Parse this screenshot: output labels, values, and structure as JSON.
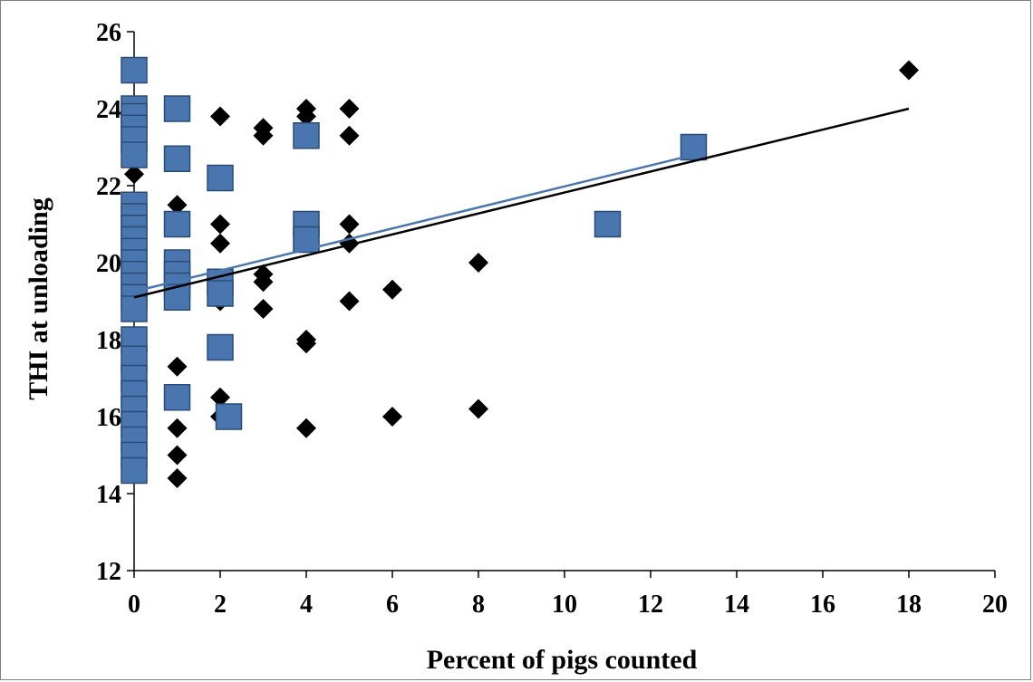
{
  "chart_data": {
    "type": "scatter",
    "title": "",
    "xlabel": "Percent of pigs counted",
    "ylabel": "THI at unloading",
    "xlim": [
      0,
      20
    ],
    "ylim": [
      12,
      26
    ],
    "x_ticks": [
      0,
      2,
      4,
      6,
      8,
      10,
      12,
      14,
      16,
      18,
      20
    ],
    "y_ticks": [
      12,
      14,
      16,
      18,
      20,
      22,
      24,
      26
    ],
    "grid": false,
    "legend": "none",
    "series": [
      {
        "marker": "diamond",
        "color": "#000000",
        "points": [
          [
            0,
            22.3
          ],
          [
            0,
            23.8
          ],
          [
            0,
            20.5
          ],
          [
            0,
            19.0
          ],
          [
            1,
            24.0
          ],
          [
            1,
            21.5
          ],
          [
            1,
            17.3
          ],
          [
            1,
            15.7
          ],
          [
            1,
            15.0
          ],
          [
            1,
            14.4
          ],
          [
            2,
            23.8
          ],
          [
            2,
            21.0
          ],
          [
            2,
            20.5
          ],
          [
            2,
            19.0
          ],
          [
            2,
            16.5
          ],
          [
            2,
            16.0
          ],
          [
            3,
            23.5
          ],
          [
            3,
            23.3
          ],
          [
            3,
            19.7
          ],
          [
            3,
            19.5
          ],
          [
            3,
            18.8
          ],
          [
            4,
            24.0
          ],
          [
            4,
            23.8
          ],
          [
            4,
            18.0
          ],
          [
            4,
            17.9
          ],
          [
            4,
            15.7
          ],
          [
            5,
            24.0
          ],
          [
            5,
            23.3
          ],
          [
            5,
            21.0
          ],
          [
            5,
            20.5
          ],
          [
            5,
            19.0
          ],
          [
            6,
            19.3
          ],
          [
            6,
            16.0
          ],
          [
            8,
            20.0
          ],
          [
            8,
            16.2
          ],
          [
            18,
            25.0
          ]
        ],
        "trendline": {
          "color": "#000000",
          "x": [
            0,
            18
          ],
          "y": [
            19.1,
            24.0
          ]
        }
      },
      {
        "marker": "square",
        "color": "#4a76b0",
        "points": [
          [
            0,
            25.0
          ],
          [
            0,
            24.0
          ],
          [
            0,
            23.8
          ],
          [
            0,
            23.5
          ],
          [
            0,
            23.2
          ],
          [
            0,
            22.8
          ],
          [
            0,
            21.5
          ],
          [
            0,
            21.2
          ],
          [
            0,
            20.9
          ],
          [
            0,
            20.6
          ],
          [
            0,
            20.3
          ],
          [
            0,
            20.0
          ],
          [
            0,
            19.7
          ],
          [
            0,
            19.4
          ],
          [
            0,
            19.1
          ],
          [
            0,
            18.8
          ],
          [
            0,
            18.0
          ],
          [
            0,
            17.5
          ],
          [
            0,
            17.0
          ],
          [
            0,
            16.6
          ],
          [
            0,
            16.2
          ],
          [
            0,
            15.8
          ],
          [
            0,
            15.4
          ],
          [
            0,
            15.0
          ],
          [
            0,
            14.6
          ],
          [
            1,
            24.0
          ],
          [
            1,
            22.7
          ],
          [
            1,
            21.0
          ],
          [
            1,
            20.0
          ],
          [
            1,
            19.7
          ],
          [
            1,
            19.4
          ],
          [
            1,
            19.1
          ],
          [
            1,
            16.5
          ],
          [
            2,
            22.2
          ],
          [
            2,
            19.5
          ],
          [
            2,
            19.2
          ],
          [
            2,
            17.8
          ],
          [
            2.2,
            16.0
          ],
          [
            4,
            23.3
          ],
          [
            4,
            21.0
          ],
          [
            4,
            20.6
          ],
          [
            11,
            21.0
          ],
          [
            13,
            23.0
          ]
        ],
        "trendline": {
          "color": "#4a76b0",
          "x": [
            0,
            13
          ],
          "y": [
            19.25,
            22.8
          ]
        }
      }
    ]
  }
}
